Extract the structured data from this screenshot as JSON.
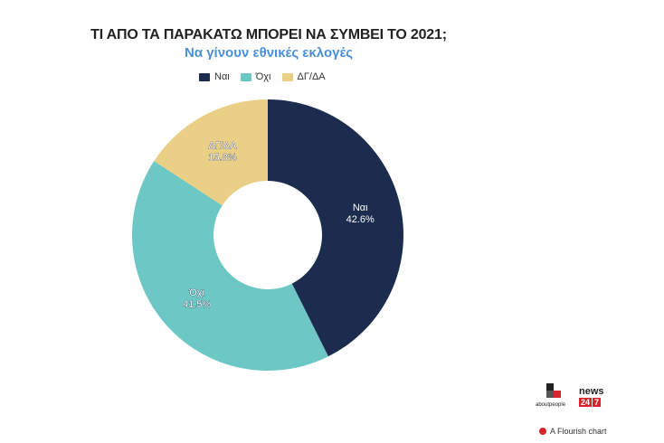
{
  "chart_data": {
    "type": "pie",
    "title": "ΤΙ ΑΠΟ ΤΑ ΠΑΡΑΚΑΤΩ ΜΠΟΡΕΙ ΝΑ ΣΥΜΒΕΙ ΤΟ 2021;",
    "subtitle": "Να γίνουν εθνικές εκλογές",
    "categories": [
      "Ναι",
      "Όχι",
      "ΔΓ/ΔΑ"
    ],
    "values": [
      42.6,
      41.5,
      15.8
    ],
    "value_labels": [
      "42.6%",
      "41.5%",
      "15.8%"
    ],
    "colors": [
      "#1b2c4e",
      "#6cc7c5",
      "#eacf86"
    ],
    "donut": true,
    "legend_position": "top"
  },
  "legend": [
    {
      "label": "Ναι",
      "color": "#1b2c4e"
    },
    {
      "label": "Όχι",
      "color": "#6cc7c5"
    },
    {
      "label": "ΔΓ/ΔΑ",
      "color": "#eacf86"
    }
  ],
  "branding": {
    "about_logo_text": "aboutpeople",
    "news_logo_text": "news",
    "news_logo_num": [
      "24",
      "7"
    ],
    "flourish_credit": "A Flourish chart"
  }
}
